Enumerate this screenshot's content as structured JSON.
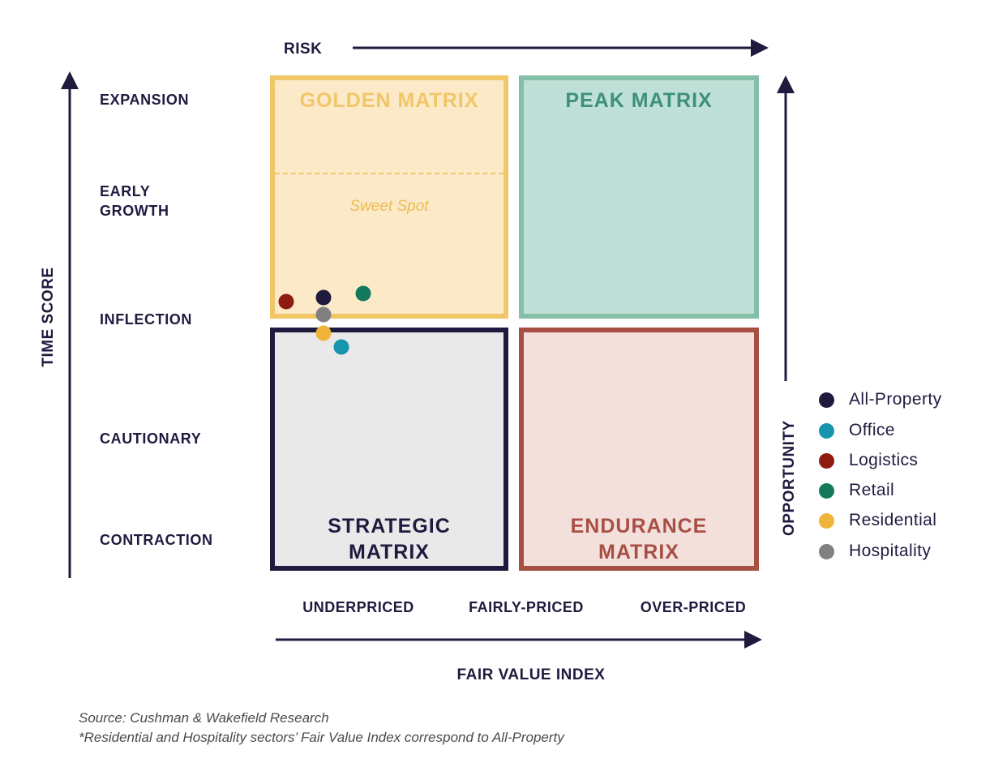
{
  "axes": {
    "top": "RISK",
    "left": "TIME SCORE",
    "right": "OPPORTUNITY",
    "bottom": "FAIR VALUE INDEX"
  },
  "rows": [
    {
      "id": "expansion",
      "label": "EXPANSION"
    },
    {
      "id": "early-growth",
      "label": "EARLY\nGROWTH"
    },
    {
      "id": "inflection",
      "label": "INFLECTION"
    },
    {
      "id": "cautionary",
      "label": "CAUTIONARY"
    },
    {
      "id": "contraction",
      "label": "CONTRACTION"
    }
  ],
  "columns": [
    {
      "id": "underpriced",
      "label": "UNDERPRICED"
    },
    {
      "id": "fairly-priced",
      "label": "FAIRLY-PRICED"
    },
    {
      "id": "over-priced",
      "label": "OVER-PRICED"
    }
  ],
  "quadrants": {
    "golden": {
      "title": "GOLDEN MATRIX",
      "sweet_spot": "Sweet Spot",
      "color": "#f0c667",
      "fill": "#fbe9c8"
    },
    "peak": {
      "title": "PEAK MATRIX",
      "color": "#84bfa8",
      "fill": "#bfe0d6"
    },
    "strategic": {
      "title": "STRATEGIC\nMATRIX",
      "color": "#1e1b3f",
      "fill": "#e9e9e9"
    },
    "endurance": {
      "title": "ENDURANCE\nMATRIX",
      "color": "#a84f43",
      "fill": "#f3e0dd"
    }
  },
  "legend": [
    {
      "id": "all-property",
      "label": "All-Property",
      "color": "#1e1b3f"
    },
    {
      "id": "office",
      "label": "Office",
      "color": "#1795ad"
    },
    {
      "id": "logistics",
      "label": "Logistics",
      "color": "#8e1a10"
    },
    {
      "id": "retail",
      "label": "Retail",
      "color": "#14795b"
    },
    {
      "id": "residential",
      "label": "Residential",
      "color": "#f0b43a"
    },
    {
      "id": "hospitality",
      "label": "Hospitality",
      "color": "#808080"
    }
  ],
  "notes": {
    "source": "Source: Cushman & Wakefield Research",
    "footnote": "*Residential and Hospitality sectors’ Fair Value Index correspond to All-Property"
  }
}
